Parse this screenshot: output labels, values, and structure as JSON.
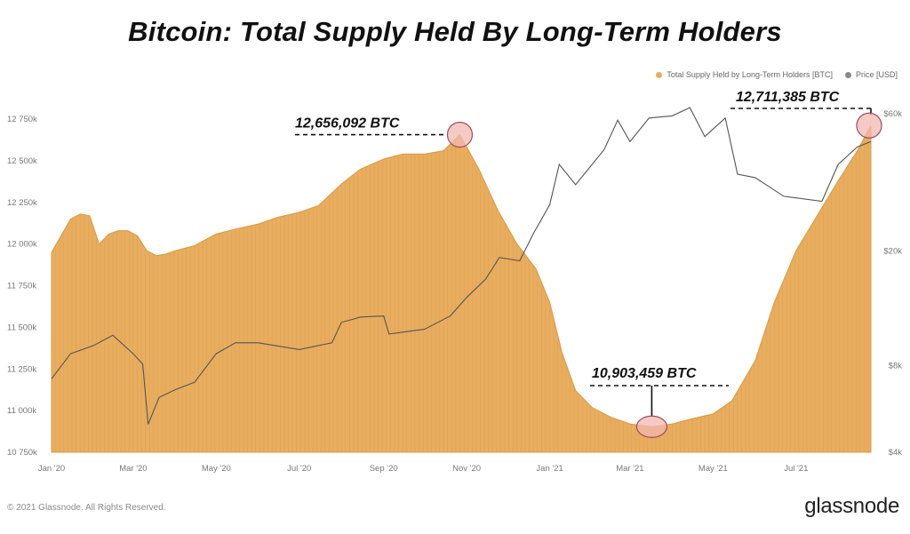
{
  "page": {
    "copyright": "© 2021 Glassnode. All Rights Reserved.",
    "brand": "glassnode",
    "watermark": "glassnode"
  },
  "colors": {
    "supply": "#e8ad5f",
    "supply_stroke": "#d99a45",
    "price": "#555555",
    "highlight": "#f2b8b0",
    "highlight_stroke": "#a04b5e",
    "legend_price_dot": "#888888"
  },
  "chart_data": {
    "type": "area",
    "title": "Bitcoin: Total Supply Held By Long-Term Holders",
    "legend": {
      "position": "top-right",
      "items": [
        {
          "name": "Total Supply Held by Long-Term Holders [BTC]",
          "color": "#e8ad5f"
        },
        {
          "name": "Price [USD]",
          "color": "#888888"
        }
      ]
    },
    "x_range": [
      "2020-01-01",
      "2021-08-25"
    ],
    "x_ticks": [
      {
        "label": "Jan '20",
        "date": "2020-01-01"
      },
      {
        "label": "Mar '20",
        "date": "2020-03-01"
      },
      {
        "label": "May '20",
        "date": "2020-05-01"
      },
      {
        "label": "Jul '20",
        "date": "2020-07-01"
      },
      {
        "label": "Sep '20",
        "date": "2020-09-01"
      },
      {
        "label": "Nov '20",
        "date": "2020-11-01"
      },
      {
        "label": "Jan '21",
        "date": "2021-01-01"
      },
      {
        "label": "Mar '21",
        "date": "2021-03-01"
      },
      {
        "label": "May '21",
        "date": "2021-05-01"
      },
      {
        "label": "Jul '21",
        "date": "2021-07-01"
      }
    ],
    "y_left": {
      "range": [
        10700000,
        12850000
      ],
      "ticks": [
        {
          "label": "12 750k",
          "value": 12750000
        },
        {
          "label": "12 500k",
          "value": 12500000
        },
        {
          "label": "12 250k",
          "value": 12250000
        },
        {
          "label": "12 000k",
          "value": 12000000
        },
        {
          "label": "11 750k",
          "value": 11750000
        },
        {
          "label": "11 500k",
          "value": 11500000
        },
        {
          "label": "11 250k",
          "value": 11250000
        },
        {
          "label": "11 000k",
          "value": 11000000
        },
        {
          "label": "10 750k",
          "value": 10750000
        }
      ]
    },
    "y_right": {
      "scale": "log",
      "ticks": [
        {
          "label": "$60k",
          "value": 60000
        },
        {
          "label": "$20k",
          "value": 20000
        },
        {
          "label": "$8k",
          "value": 8000
        },
        {
          "label": "$4k",
          "value": 4000
        }
      ]
    },
    "series": [
      {
        "name": "Total Supply Held by Long-Term Holders [BTC]",
        "unit": "BTC",
        "points": [
          [
            "2020-01-01",
            11950000
          ],
          [
            "2020-01-08",
            12050000
          ],
          [
            "2020-01-15",
            12150000
          ],
          [
            "2020-01-22",
            12180000
          ],
          [
            "2020-01-29",
            12170000
          ],
          [
            "2020-02-05",
            12000000
          ],
          [
            "2020-02-12",
            12060000
          ],
          [
            "2020-02-19",
            12080000
          ],
          [
            "2020-02-26",
            12080000
          ],
          [
            "2020-03-04",
            12050000
          ],
          [
            "2020-03-11",
            11960000
          ],
          [
            "2020-03-18",
            11930000
          ],
          [
            "2020-03-25",
            11940000
          ],
          [
            "2020-04-01",
            11960000
          ],
          [
            "2020-04-15",
            11990000
          ],
          [
            "2020-05-01",
            12060000
          ],
          [
            "2020-05-15",
            12090000
          ],
          [
            "2020-06-01",
            12120000
          ],
          [
            "2020-06-15",
            12160000
          ],
          [
            "2020-07-01",
            12190000
          ],
          [
            "2020-07-15",
            12230000
          ],
          [
            "2020-08-01",
            12360000
          ],
          [
            "2020-08-15",
            12450000
          ],
          [
            "2020-09-01",
            12510000
          ],
          [
            "2020-09-15",
            12540000
          ],
          [
            "2020-10-01",
            12540000
          ],
          [
            "2020-10-15",
            12560000
          ],
          [
            "2020-10-27",
            12656092
          ],
          [
            "2020-11-10",
            12450000
          ],
          [
            "2020-11-24",
            12200000
          ],
          [
            "2020-12-08",
            12000000
          ],
          [
            "2020-12-22",
            11850000
          ],
          [
            "2021-01-01",
            11650000
          ],
          [
            "2021-01-10",
            11350000
          ],
          [
            "2021-01-20",
            11120000
          ],
          [
            "2021-02-01",
            11020000
          ],
          [
            "2021-02-15",
            10960000
          ],
          [
            "2021-03-01",
            10920000
          ],
          [
            "2021-03-17",
            10903459
          ],
          [
            "2021-04-01",
            10920000
          ],
          [
            "2021-04-15",
            10950000
          ],
          [
            "2021-05-01",
            10980000
          ],
          [
            "2021-05-15",
            11060000
          ],
          [
            "2021-06-01",
            11300000
          ],
          [
            "2021-06-15",
            11650000
          ],
          [
            "2021-07-01",
            11960000
          ],
          [
            "2021-07-15",
            12150000
          ],
          [
            "2021-08-01",
            12380000
          ],
          [
            "2021-08-15",
            12560000
          ],
          [
            "2021-08-25",
            12711385
          ]
        ]
      },
      {
        "name": "Price [USD]",
        "unit": "USD",
        "points": [
          [
            "2020-01-01",
            7200
          ],
          [
            "2020-01-15",
            8800
          ],
          [
            "2020-02-01",
            9400
          ],
          [
            "2020-02-15",
            10200
          ],
          [
            "2020-03-01",
            8800
          ],
          [
            "2020-03-08",
            8100
          ],
          [
            "2020-03-12",
            5000
          ],
          [
            "2020-03-20",
            6200
          ],
          [
            "2020-04-01",
            6600
          ],
          [
            "2020-04-15",
            7000
          ],
          [
            "2020-05-01",
            8800
          ],
          [
            "2020-05-15",
            9600
          ],
          [
            "2020-06-01",
            9600
          ],
          [
            "2020-07-01",
            9100
          ],
          [
            "2020-07-25",
            9600
          ],
          [
            "2020-08-01",
            11300
          ],
          [
            "2020-08-15",
            11800
          ],
          [
            "2020-09-01",
            11900
          ],
          [
            "2020-09-05",
            10300
          ],
          [
            "2020-10-01",
            10700
          ],
          [
            "2020-10-20",
            11900
          ],
          [
            "2020-11-01",
            13800
          ],
          [
            "2020-11-15",
            16000
          ],
          [
            "2020-11-25",
            19000
          ],
          [
            "2020-12-10",
            18500
          ],
          [
            "2020-12-20",
            23000
          ],
          [
            "2021-01-01",
            29000
          ],
          [
            "2021-01-08",
            40000
          ],
          [
            "2021-01-20",
            34000
          ],
          [
            "2021-02-10",
            45000
          ],
          [
            "2021-02-20",
            57000
          ],
          [
            "2021-03-01",
            48000
          ],
          [
            "2021-03-15",
            58000
          ],
          [
            "2021-04-01",
            59000
          ],
          [
            "2021-04-14",
            63000
          ],
          [
            "2021-04-25",
            50000
          ],
          [
            "2021-05-10",
            58000
          ],
          [
            "2021-05-19",
            37000
          ],
          [
            "2021-06-01",
            36000
          ],
          [
            "2021-06-22",
            31000
          ],
          [
            "2021-07-20",
            29800
          ],
          [
            "2021-08-01",
            40000
          ],
          [
            "2021-08-15",
            46000
          ],
          [
            "2021-08-25",
            48000
          ]
        ]
      }
    ],
    "annotations": [
      {
        "label": "12,656,092 BTC",
        "date": "2020-10-27",
        "value": 12656092
      },
      {
        "label": "10,903,459 BTC",
        "date": "2021-03-17",
        "value": 10903459
      },
      {
        "label": "12,711,385 BTC",
        "date": "2021-08-25",
        "value": 12711385
      }
    ]
  }
}
